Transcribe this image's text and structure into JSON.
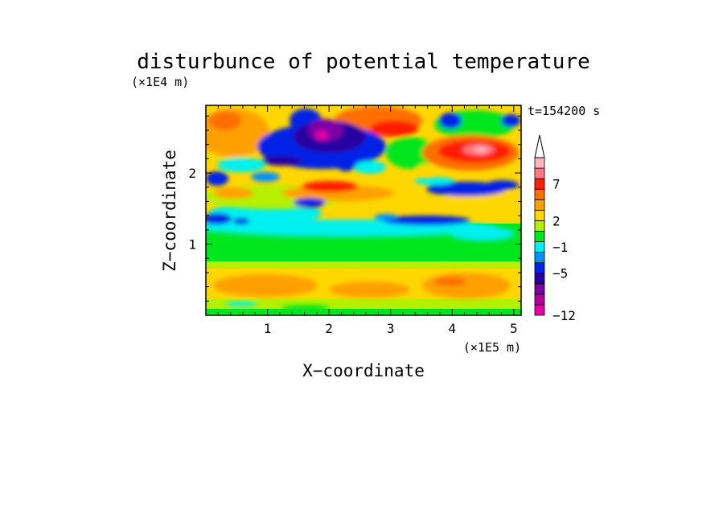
{
  "chart_data": {
    "type": "heatmap",
    "title": "disturbunce of potential temperature",
    "time_label": "t=154200 s",
    "xlabel": "X−coordinate",
    "ylabel": "Z−coordinate",
    "x_scale_label": "(×1E5 m)",
    "y_scale_label": "(×1E4 m)",
    "xlim": [
      0,
      5.12
    ],
    "ylim": [
      0,
      2.95
    ],
    "x_ticks": [
      {
        "value": 1,
        "label": "1"
      },
      {
        "value": 2,
        "label": "2"
      },
      {
        "value": 3,
        "label": "3"
      },
      {
        "value": 4,
        "label": "4"
      },
      {
        "value": 5,
        "label": "5"
      }
    ],
    "y_ticks": [
      {
        "value": 1,
        "label": "1"
      },
      {
        "value": 2,
        "label": "2"
      }
    ],
    "colorbar": {
      "labels": [
        {
          "value": 7,
          "label": "7"
        },
        {
          "value": 2,
          "label": "2"
        },
        {
          "value": -1,
          "label": "−1"
        },
        {
          "value": -5,
          "label": "−5"
        },
        {
          "value": -12,
          "label": "−12"
        }
      ],
      "colors": [
        "#e600a8",
        "#b4009b",
        "#7d00a6",
        "#2600a0",
        "#0024e6",
        "#0091ff",
        "#00f0f0",
        "#00e61e",
        "#b4f000",
        "#ffd700",
        "#ffa000",
        "#ff6e00",
        "#ff1e00",
        "#ff7882",
        "#ffb4bc"
      ]
    }
  }
}
